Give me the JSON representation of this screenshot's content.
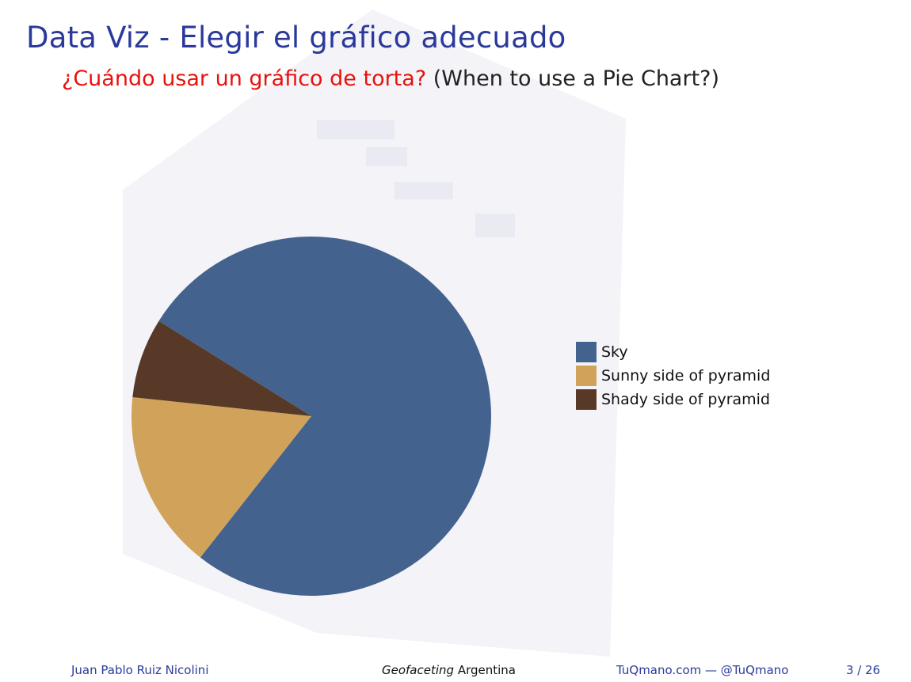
{
  "slide": {
    "title": "Data Viz - Elegir el gráfico adecuado",
    "subtitle_question": "¿Cuándo usar un gráfico de torta?",
    "subtitle_translation": "(When to use a Pie Chart?)"
  },
  "footer": {
    "author": "Juan Pablo Ruiz Nicolini",
    "event_italic": "Geofaceting",
    "event_rest": " Argentina",
    "site": "TuQmano.com — @TuQmano",
    "page": "3 / 26"
  },
  "colors": {
    "title": "#2b3a9a",
    "subtitle_question": "#e8120c"
  },
  "chart_data": {
    "type": "pie",
    "title": "",
    "legend_position": "right",
    "start_angle_deg": 212,
    "direction": "clockwise",
    "slices": [
      {
        "label": "Sky",
        "value": 76.7,
        "color": "#43638e"
      },
      {
        "label": "Sunny side of pyramid",
        "value": 16.1,
        "color": "#d1a35a"
      },
      {
        "label": "Shady side of pyramid",
        "value": 7.2,
        "color": "#583927"
      }
    ]
  }
}
